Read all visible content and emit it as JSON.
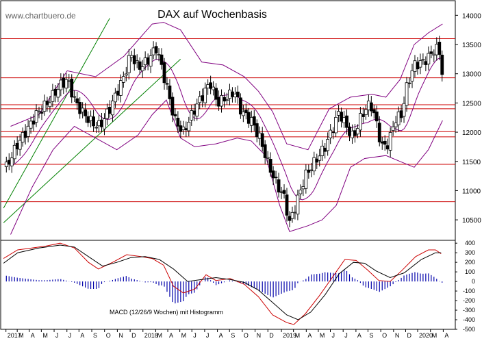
{
  "watermark": "www.chartbuero.de",
  "chart_data": [
    {
      "type": "candlestick",
      "title": "DAX auf Wochenbasis",
      "ylim": [
        10150,
        14250
      ],
      "yticks": [
        10500,
        11000,
        11500,
        12000,
        12500,
        13000,
        13500,
        14000
      ],
      "colors": {
        "line": "#cc0000",
        "band": "#800080",
        "trend": "#008000",
        "candle": "#000000"
      },
      "horizontal_levels": [
        13600,
        12930,
        12470,
        12400,
        12010,
        11920,
        11450,
        10810
      ],
      "trend_channel": [
        {
          "from": [
            2016.95,
            10700
          ],
          "to": [
            2017.7,
            13950
          ]
        },
        {
          "from": [
            2016.95,
            10450
          ],
          "to": [
            2018.2,
            13250
          ]
        }
      ],
      "anchors": [
        [
          2016.97,
          11400
        ],
        [
          2017.05,
          11800
        ],
        [
          2017.12,
          12050
        ],
        [
          2017.18,
          12300
        ],
        [
          2017.26,
          12500
        ],
        [
          2017.35,
          12800
        ],
        [
          2017.4,
          12900
        ],
        [
          2017.46,
          12500
        ],
        [
          2017.52,
          12300
        ],
        [
          2017.58,
          12150
        ],
        [
          2017.63,
          12100
        ],
        [
          2017.7,
          12400
        ],
        [
          2017.8,
          12950
        ],
        [
          2017.85,
          13350
        ],
        [
          2017.9,
          13100
        ],
        [
          2017.96,
          13200
        ],
        [
          2018.03,
          13450
        ],
        [
          2018.1,
          12800
        ],
        [
          2018.16,
          12200
        ],
        [
          2018.22,
          12000
        ],
        [
          2018.3,
          12400
        ],
        [
          2018.36,
          12650
        ],
        [
          2018.41,
          12850
        ],
        [
          2018.46,
          12500
        ],
        [
          2018.53,
          12600
        ],
        [
          2018.58,
          12700
        ],
        [
          2018.63,
          12350
        ],
        [
          2018.7,
          12200
        ],
        [
          2018.76,
          11900
        ],
        [
          2018.82,
          11450
        ],
        [
          2018.88,
          11100
        ],
        [
          2018.93,
          10900
        ],
        [
          2018.97,
          10450
        ],
        [
          2019.02,
          10800
        ],
        [
          2019.08,
          11250
        ],
        [
          2019.15,
          11500
        ],
        [
          2019.22,
          11750
        ],
        [
          2019.28,
          12100
        ],
        [
          2019.32,
          12350
        ],
        [
          2019.37,
          12100
        ],
        [
          2019.42,
          11900
        ],
        [
          2019.48,
          12300
        ],
        [
          2019.54,
          12500
        ],
        [
          2019.58,
          12200
        ],
        [
          2019.62,
          11750
        ],
        [
          2019.67,
          11800
        ],
        [
          2019.71,
          12200
        ],
        [
          2019.76,
          12300
        ],
        [
          2019.8,
          12800
        ],
        [
          2019.85,
          13150
        ],
        [
          2019.91,
          13200
        ],
        [
          2019.96,
          13300
        ],
        [
          2020.0,
          13450
        ],
        [
          2020.03,
          13350
        ],
        [
          2020.05,
          12980
        ]
      ],
      "bollinger": {
        "upper": [
          [
            2017.0,
            12100
          ],
          [
            2017.2,
            12300
          ],
          [
            2017.4,
            13050
          ],
          [
            2017.6,
            12950
          ],
          [
            2017.8,
            13300
          ],
          [
            2018.0,
            13850
          ],
          [
            2018.08,
            13880
          ],
          [
            2018.2,
            13750
          ],
          [
            2018.35,
            13200
          ],
          [
            2018.5,
            13150
          ],
          [
            2018.65,
            12950
          ],
          [
            2018.75,
            12700
          ],
          [
            2018.85,
            12350
          ],
          [
            2018.95,
            11800
          ],
          [
            2019.1,
            11700
          ],
          [
            2019.25,
            12400
          ],
          [
            2019.4,
            12600
          ],
          [
            2019.55,
            12650
          ],
          [
            2019.65,
            12600
          ],
          [
            2019.75,
            12900
          ],
          [
            2019.85,
            13500
          ],
          [
            2019.95,
            13700
          ],
          [
            2020.05,
            13850
          ]
        ],
        "lower": [
          [
            2017.0,
            10250
          ],
          [
            2017.15,
            11050
          ],
          [
            2017.3,
            11700
          ],
          [
            2017.45,
            12100
          ],
          [
            2017.6,
            11900
          ],
          [
            2017.75,
            11700
          ],
          [
            2017.9,
            11950
          ],
          [
            2018.0,
            12300
          ],
          [
            2018.1,
            12550
          ],
          [
            2018.2,
            11900
          ],
          [
            2018.3,
            11750
          ],
          [
            2018.45,
            11800
          ],
          [
            2018.6,
            11900
          ],
          [
            2018.7,
            11850
          ],
          [
            2018.8,
            11600
          ],
          [
            2018.9,
            10750
          ],
          [
            2018.97,
            10300
          ],
          [
            2019.1,
            10400
          ],
          [
            2019.2,
            10500
          ],
          [
            2019.3,
            10750
          ],
          [
            2019.4,
            11400
          ],
          [
            2019.5,
            11550
          ],
          [
            2019.65,
            11600
          ],
          [
            2019.75,
            11500
          ],
          [
            2019.85,
            11400
          ],
          [
            2019.95,
            11700
          ],
          [
            2020.05,
            12200
          ]
        ]
      }
    },
    {
      "type": "macd",
      "label": "MACD (12/26/9 Wochen) mit Histogramm",
      "ylim": [
        -500,
        430
      ],
      "yticks": [
        400,
        300,
        200,
        100,
        0,
        -100,
        -200,
        -300,
        -400,
        -500
      ],
      "colors": {
        "macd": "#cc0000",
        "signal": "#000000",
        "histogram": "#0000aa"
      },
      "macd": [
        [
          2016.95,
          240
        ],
        [
          2017.05,
          330
        ],
        [
          2017.15,
          350
        ],
        [
          2017.25,
          370
        ],
        [
          2017.35,
          400
        ],
        [
          2017.45,
          350
        ],
        [
          2017.55,
          200
        ],
        [
          2017.62,
          130
        ],
        [
          2017.72,
          200
        ],
        [
          2017.82,
          280
        ],
        [
          2017.92,
          260
        ],
        [
          2018.0,
          240
        ],
        [
          2018.08,
          170
        ],
        [
          2018.15,
          -50
        ],
        [
          2018.22,
          -120
        ],
        [
          2018.3,
          -80
        ],
        [
          2018.38,
          70
        ],
        [
          2018.45,
          10
        ],
        [
          2018.55,
          30
        ],
        [
          2018.65,
          -30
        ],
        [
          2018.75,
          -160
        ],
        [
          2018.85,
          -350
        ],
        [
          2018.95,
          -430
        ],
        [
          2019.0,
          -450
        ],
        [
          2019.08,
          -340
        ],
        [
          2019.18,
          -150
        ],
        [
          2019.28,
          60
        ],
        [
          2019.36,
          230
        ],
        [
          2019.44,
          220
        ],
        [
          2019.52,
          120
        ],
        [
          2019.6,
          10
        ],
        [
          2019.68,
          0
        ],
        [
          2019.76,
          110
        ],
        [
          2019.86,
          260
        ],
        [
          2019.95,
          330
        ],
        [
          2020.0,
          330
        ],
        [
          2020.04,
          290
        ]
      ],
      "signal": [
        [
          2016.95,
          190
        ],
        [
          2017.05,
          300
        ],
        [
          2017.2,
          350
        ],
        [
          2017.35,
          380
        ],
        [
          2017.45,
          360
        ],
        [
          2017.55,
          260
        ],
        [
          2017.65,
          160
        ],
        [
          2017.75,
          200
        ],
        [
          2017.85,
          250
        ],
        [
          2017.95,
          260
        ],
        [
          2018.05,
          230
        ],
        [
          2018.15,
          130
        ],
        [
          2018.25,
          0
        ],
        [
          2018.35,
          20
        ],
        [
          2018.45,
          40
        ],
        [
          2018.55,
          20
        ],
        [
          2018.65,
          -10
        ],
        [
          2018.75,
          -90
        ],
        [
          2018.85,
          -220
        ],
        [
          2018.95,
          -350
        ],
        [
          2019.03,
          -400
        ],
        [
          2019.12,
          -320
        ],
        [
          2019.22,
          -140
        ],
        [
          2019.32,
          80
        ],
        [
          2019.42,
          200
        ],
        [
          2019.5,
          190
        ],
        [
          2019.58,
          110
        ],
        [
          2019.68,
          40
        ],
        [
          2019.78,
          90
        ],
        [
          2019.9,
          230
        ],
        [
          2020.0,
          300
        ],
        [
          2020.04,
          300
        ]
      ]
    }
  ],
  "x_axis": {
    "labels": [
      [
        "2017",
        2016.965
      ],
      [
        "M",
        2017.04
      ],
      [
        "A",
        2017.12
      ],
      [
        "M",
        2017.2
      ],
      [
        "J",
        2017.285
      ],
      [
        "J",
        2017.37
      ],
      [
        "A",
        2017.45
      ],
      [
        "S",
        2017.535
      ],
      [
        "O",
        2017.62
      ],
      [
        "N",
        2017.705
      ],
      [
        "D",
        2017.79
      ],
      [
        "2018",
        2017.875
      ],
      [
        "M",
        2017.96
      ],
      [
        "A",
        2018.04
      ],
      [
        "M",
        2018.12
      ],
      [
        "J",
        2018.2
      ],
      [
        "J",
        2018.285
      ],
      [
        "A",
        2018.37
      ],
      [
        "S",
        2018.45
      ],
      [
        "O",
        2018.535
      ],
      [
        "N",
        2018.62
      ],
      [
        "D",
        2018.705
      ],
      [
        "2019",
        2018.795
      ],
      [
        "M",
        2018.875
      ],
      [
        "A",
        2018.96
      ],
      [
        "M",
        2019.04
      ],
      [
        "J",
        2019.12
      ],
      [
        "J",
        2019.205
      ],
      [
        "A",
        2019.29
      ],
      [
        "S",
        2019.37
      ],
      [
        "O",
        2019.455
      ],
      [
        "N",
        2019.54
      ],
      [
        "D",
        2019.62
      ],
      [
        "2020",
        2019.7
      ],
      [
        "M",
        2019.785
      ],
      [
        "A",
        2019.87
      ]
    ]
  }
}
